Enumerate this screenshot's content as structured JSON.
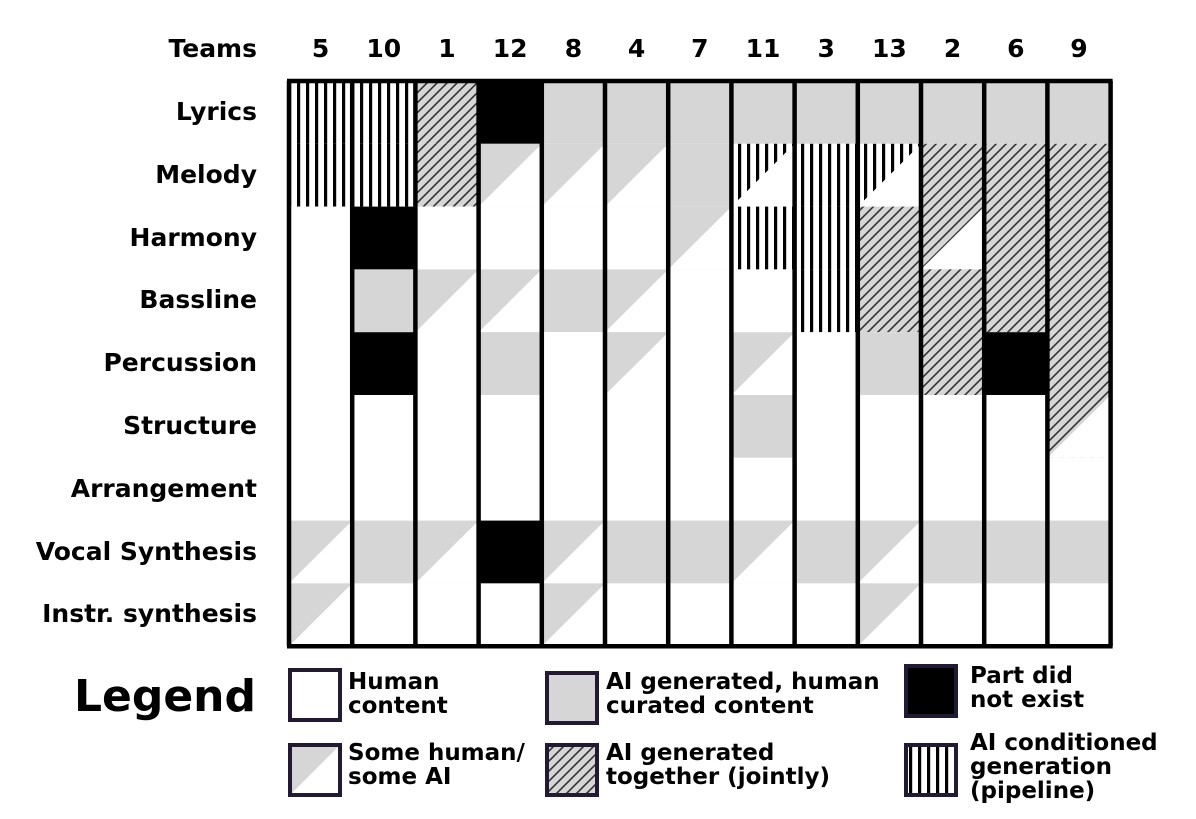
{
  "chart_data": {
    "type": "heatmap",
    "header": "Teams",
    "teams": [
      "5",
      "10",
      "1",
      "12",
      "8",
      "4",
      "7",
      "11",
      "3",
      "13",
      "2",
      "6",
      "9"
    ],
    "parts": [
      "Lyrics",
      "Melody",
      "Harmony",
      "Bassline",
      "Percussion",
      "Structure",
      "Arrangement",
      "Vocal Synthesis",
      "Instr. synthesis"
    ],
    "cells": [
      [
        "pipeline",
        "pipeline",
        "jointly",
        "none",
        "curated",
        "curated",
        "curated",
        "curated",
        "curated",
        "curated",
        "curated",
        "curated",
        "curated"
      ],
      [
        "pipeline",
        "pipeline",
        "jointly",
        "mixed",
        "mixed",
        "mixed",
        "curated",
        "pipeline-mixed",
        "pipeline",
        "pipeline-mixed",
        "jointly",
        "jointly",
        "jointly"
      ],
      [
        "human",
        "none",
        "human",
        "human",
        "human",
        "human",
        "mixed",
        "pipeline",
        "pipeline",
        "jointly",
        "jointly-mixed",
        "jointly",
        "jointly"
      ],
      [
        "human",
        "curated",
        "mixed",
        "mixed",
        "curated",
        "mixed",
        "human",
        "human",
        "pipeline",
        "jointly",
        "jointly",
        "jointly",
        "jointly"
      ],
      [
        "human",
        "none",
        "human",
        "curated",
        "human",
        "mixed",
        "human",
        "mixed",
        "human",
        "curated",
        "jointly",
        "none",
        "jointly"
      ],
      [
        "human",
        "human",
        "human",
        "human",
        "human",
        "human",
        "human",
        "curated",
        "human",
        "human",
        "human",
        "human",
        "jointly-mixed"
      ],
      [
        "human",
        "human",
        "human",
        "human",
        "human",
        "human",
        "human",
        "human",
        "human",
        "human",
        "human",
        "human",
        "human"
      ],
      [
        "mixed",
        "curated",
        "mixed",
        "none",
        "mixed",
        "curated",
        "curated",
        "mixed",
        "curated",
        "mixed",
        "curated",
        "curated",
        "curated"
      ],
      [
        "mixed",
        "human",
        "human",
        "human",
        "mixed",
        "human",
        "human",
        "human",
        "human",
        "mixed",
        "human",
        "human",
        "human"
      ]
    ],
    "legend_title": "Legend",
    "legend": [
      {
        "key": "human",
        "label": "Human\ncontent"
      },
      {
        "key": "curated",
        "label": "AI generated, human\ncurated content"
      },
      {
        "key": "none",
        "label": "Part did\nnot exist"
      },
      {
        "key": "mixed",
        "label": "Some human/\nsome AI"
      },
      {
        "key": "jointly",
        "label": "AI generated\ntogether (jointly)"
      },
      {
        "key": "pipeline",
        "label": "AI conditioned\ngeneration\n(pipeline)"
      }
    ]
  },
  "colors": {
    "grey": "#d6d6d6",
    "black": "#000000",
    "white": "#ffffff",
    "legend_border": "#221a33"
  }
}
